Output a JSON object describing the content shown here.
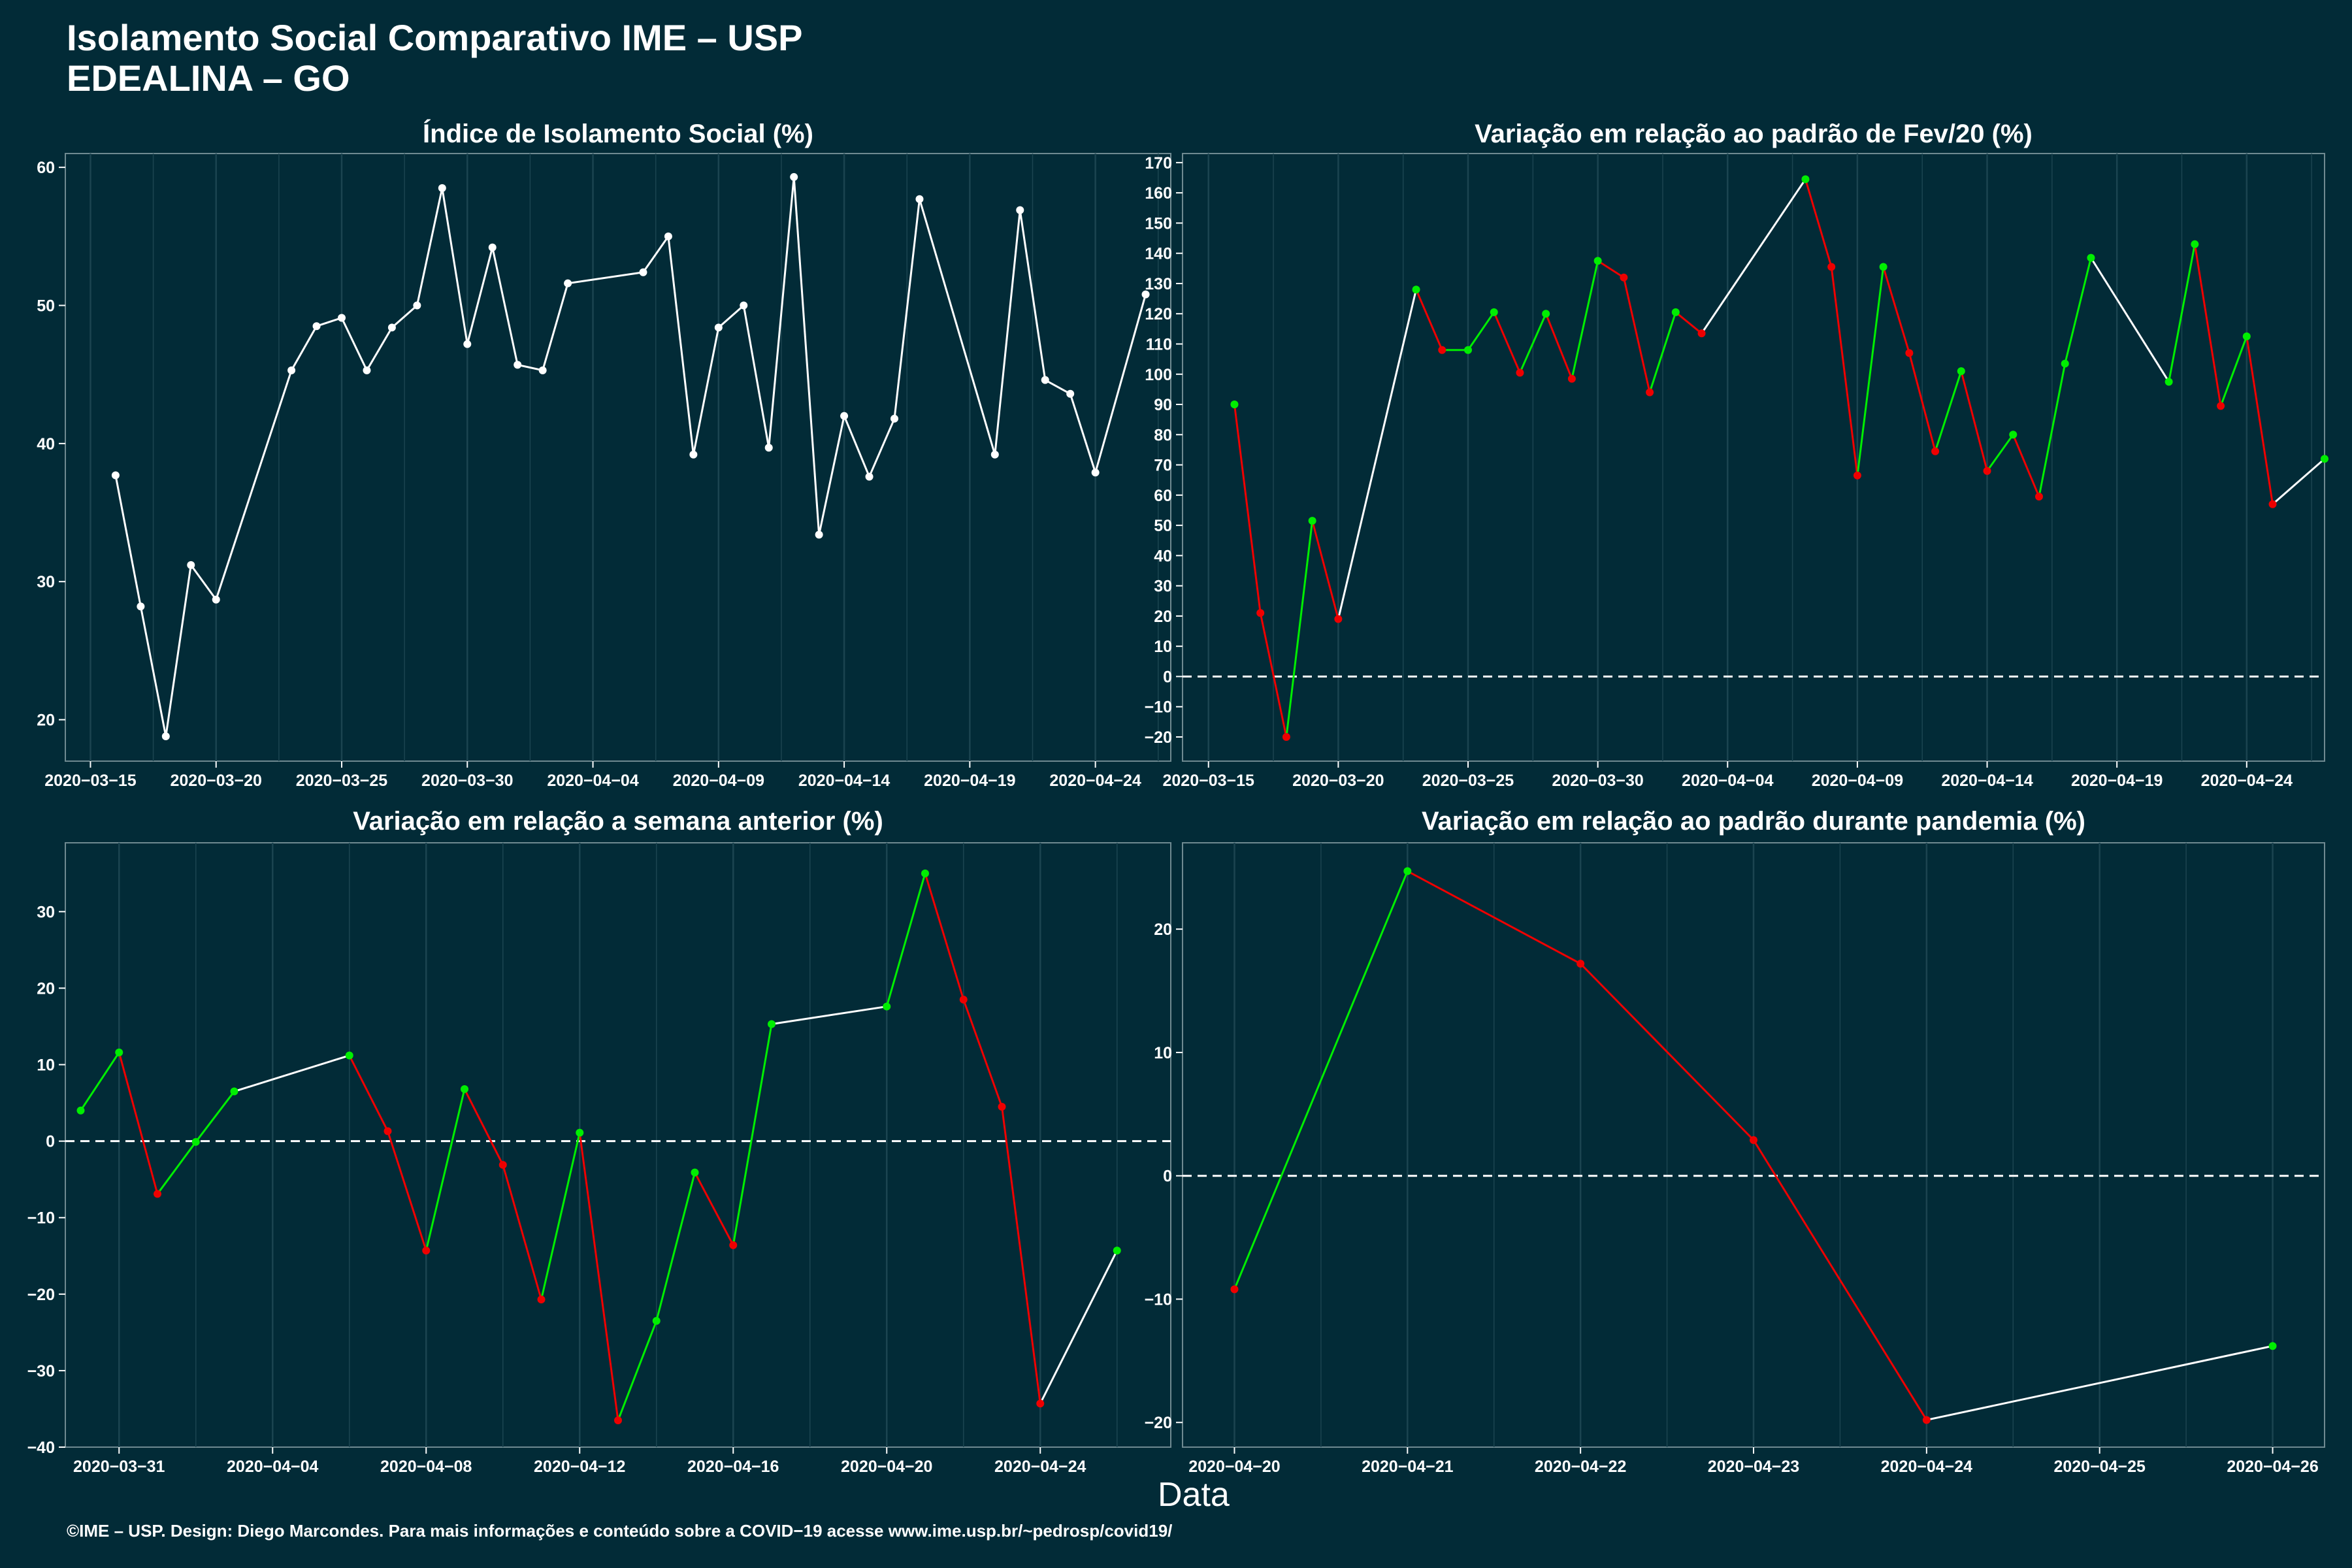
{
  "header": {
    "title_line1": "Isolamento Social Comparativo IME – USP",
    "title_line2": "EDEALINA – GO"
  },
  "footer": "©IME – USP. Design: Diego Marcondes. Para mais informações e conteúdo sobre a COVID−19 acesse www.ime.usp.br/~pedrosp/covid19/",
  "x_axis_label": "Data",
  "colors": {
    "background": "#022b37",
    "neutral": "#ffffff",
    "up": "#00ee00",
    "down": "#ee0000",
    "grid": "#1b4450"
  },
  "chart_data": [
    {
      "type": "line",
      "title": "Índice de Isolamento Social (%)",
      "ylim": [
        17,
        61
      ],
      "yticks": [
        20,
        30,
        40,
        50,
        60
      ],
      "xlim": [
        "2020-03-14",
        "2020-04-27"
      ],
      "xticks": [
        "2020-03-15",
        "2020-03-20",
        "2020-03-25",
        "2020-03-30",
        "2020-04-04",
        "2020-04-09",
        "2020-04-14",
        "2020-04-19",
        "2020-04-24"
      ],
      "colored": false,
      "baseline": false,
      "points": [
        [
          "2020-03-16",
          37.7
        ],
        [
          "2020-03-17",
          28.2
        ],
        [
          "2020-03-18",
          18.8
        ],
        [
          "2020-03-19",
          31.2
        ],
        [
          "2020-03-20",
          28.7
        ],
        [
          "2020-03-23",
          45.3
        ],
        [
          "2020-03-24",
          48.5
        ],
        [
          "2020-03-25",
          49.1
        ],
        [
          "2020-03-26",
          45.3
        ],
        [
          "2020-03-27",
          48.4
        ],
        [
          "2020-03-28",
          50.0
        ],
        [
          "2020-03-29",
          58.5
        ],
        [
          "2020-03-30",
          47.2
        ],
        [
          "2020-03-31",
          54.2
        ],
        [
          "2020-04-01",
          45.7
        ],
        [
          "2020-04-02",
          45.3
        ],
        [
          "2020-04-03",
          51.6
        ],
        [
          "2020-04-06",
          52.4
        ],
        [
          "2020-04-07",
          55.0
        ],
        [
          "2020-04-08",
          39.2
        ],
        [
          "2020-04-09",
          48.4
        ],
        [
          "2020-04-10",
          50.0
        ],
        [
          "2020-04-11",
          39.7
        ],
        [
          "2020-04-12",
          59.3
        ],
        [
          "2020-04-13",
          33.4
        ],
        [
          "2020-04-14",
          42.0
        ],
        [
          "2020-04-15",
          37.6
        ],
        [
          "2020-04-16",
          41.8
        ],
        [
          "2020-04-17",
          57.7
        ],
        [
          "2020-04-20",
          39.2
        ],
        [
          "2020-04-21",
          56.9
        ],
        [
          "2020-04-22",
          44.6
        ],
        [
          "2020-04-23",
          43.6
        ],
        [
          "2020-04-24",
          37.9
        ],
        [
          "2020-04-26",
          50.8
        ]
      ]
    },
    {
      "type": "line",
      "title": "Variação em relação ao padrão de Fev/20 (%)",
      "ylim": [
        -28,
        173
      ],
      "yticks": [
        -20,
        -10,
        0,
        10,
        20,
        30,
        40,
        50,
        60,
        70,
        80,
        90,
        100,
        110,
        120,
        130,
        140,
        150,
        160,
        170
      ],
      "xlim": [
        "2020-03-14",
        "2020-04-27"
      ],
      "xticks": [
        "2020-03-15",
        "2020-03-20",
        "2020-03-25",
        "2020-03-30",
        "2020-04-04",
        "2020-04-09",
        "2020-04-14",
        "2020-04-19",
        "2020-04-24"
      ],
      "colored": true,
      "baseline": true,
      "points": [
        [
          "2020-03-16",
          90
        ],
        [
          "2020-03-17",
          21
        ],
        [
          "2020-03-18",
          -20
        ],
        [
          "2020-03-19",
          51.5
        ],
        [
          "2020-03-20",
          19
        ],
        [
          "2020-03-23",
          128
        ],
        [
          "2020-03-24",
          108
        ],
        [
          "2020-03-25",
          108
        ],
        [
          "2020-03-26",
          120.5
        ],
        [
          "2020-03-27",
          100.5
        ],
        [
          "2020-03-28",
          120
        ],
        [
          "2020-03-29",
          98.5
        ],
        [
          "2020-03-30",
          137.5
        ],
        [
          "2020-03-31",
          132
        ],
        [
          "2020-04-01",
          94
        ],
        [
          "2020-04-02",
          120.5
        ],
        [
          "2020-04-03",
          113.5
        ],
        [
          "2020-04-07",
          164.5
        ],
        [
          "2020-04-08",
          135.5
        ],
        [
          "2020-04-09",
          66.5
        ],
        [
          "2020-04-10",
          135.5
        ],
        [
          "2020-04-11",
          107
        ],
        [
          "2020-04-12",
          74.5
        ],
        [
          "2020-04-13",
          101
        ],
        [
          "2020-04-14",
          68
        ],
        [
          "2020-04-15",
          80
        ],
        [
          "2020-04-16",
          59.5
        ],
        [
          "2020-04-17",
          103.5
        ],
        [
          "2020-04-18",
          138.5
        ],
        [
          "2020-04-21",
          97.5
        ],
        [
          "2020-04-22",
          143
        ],
        [
          "2020-04-23",
          89.5
        ],
        [
          "2020-04-24",
          112.5
        ],
        [
          "2020-04-25",
          57
        ],
        [
          "2020-04-27",
          72
        ]
      ]
    },
    {
      "type": "line",
      "title": "Variação em relação a semana anterior (%)",
      "ylim": [
        -40,
        39
      ],
      "yticks": [
        -40,
        -30,
        -20,
        -10,
        0,
        10,
        20,
        30
      ],
      "xlim": [
        "2020-03-29.6",
        "2020-04-27.4"
      ],
      "xticks": [
        "2020-03-31",
        "2020-04-04",
        "2020-04-08",
        "2020-04-12",
        "2020-04-16",
        "2020-04-20",
        "2020-04-24"
      ],
      "colored": true,
      "baseline": true,
      "points": [
        [
          "2020-03-30",
          4.0
        ],
        [
          "2020-03-31",
          11.6
        ],
        [
          "2020-04-01",
          -6.9
        ],
        [
          "2020-04-02",
          -0.1
        ],
        [
          "2020-04-03",
          6.5
        ],
        [
          "2020-04-06",
          11.2
        ],
        [
          "2020-04-07",
          1.3
        ],
        [
          "2020-04-08",
          -14.3
        ],
        [
          "2020-04-09",
          6.8
        ],
        [
          "2020-04-10",
          -3.1
        ],
        [
          "2020-04-11",
          -20.7
        ],
        [
          "2020-04-12",
          1.1
        ],
        [
          "2020-04-13",
          -36.5
        ],
        [
          "2020-04-14",
          -23.5
        ],
        [
          "2020-04-15",
          -4.1
        ],
        [
          "2020-04-16",
          -13.6
        ],
        [
          "2020-04-17",
          15.3
        ],
        [
          "2020-04-20",
          17.6
        ],
        [
          "2020-04-21",
          35.0
        ],
        [
          "2020-04-22",
          18.5
        ],
        [
          "2020-04-23",
          4.5
        ],
        [
          "2020-04-24",
          -34.3
        ],
        [
          "2020-04-26",
          -14.3
        ]
      ]
    },
    {
      "type": "line",
      "title": "Variação em relação ao padrão durante pandemia (%)",
      "ylim": [
        -22,
        27
      ],
      "yticks": [
        -20,
        -10,
        0,
        10,
        20
      ],
      "xlim": [
        "2020-04-19.7",
        "2020-04-26.3"
      ],
      "xticks": [
        "2020-04-20",
        "2020-04-21",
        "2020-04-22",
        "2020-04-23",
        "2020-04-24",
        "2020-04-25",
        "2020-04-26"
      ],
      "colored": true,
      "baseline": true,
      "points": [
        [
          "2020-04-20",
          -9.2
        ],
        [
          "2020-04-21",
          24.7
        ],
        [
          "2020-04-22",
          17.2
        ],
        [
          "2020-04-23",
          2.9
        ],
        [
          "2020-04-24",
          -19.8
        ],
        [
          "2020-04-26",
          -13.8
        ]
      ]
    }
  ]
}
